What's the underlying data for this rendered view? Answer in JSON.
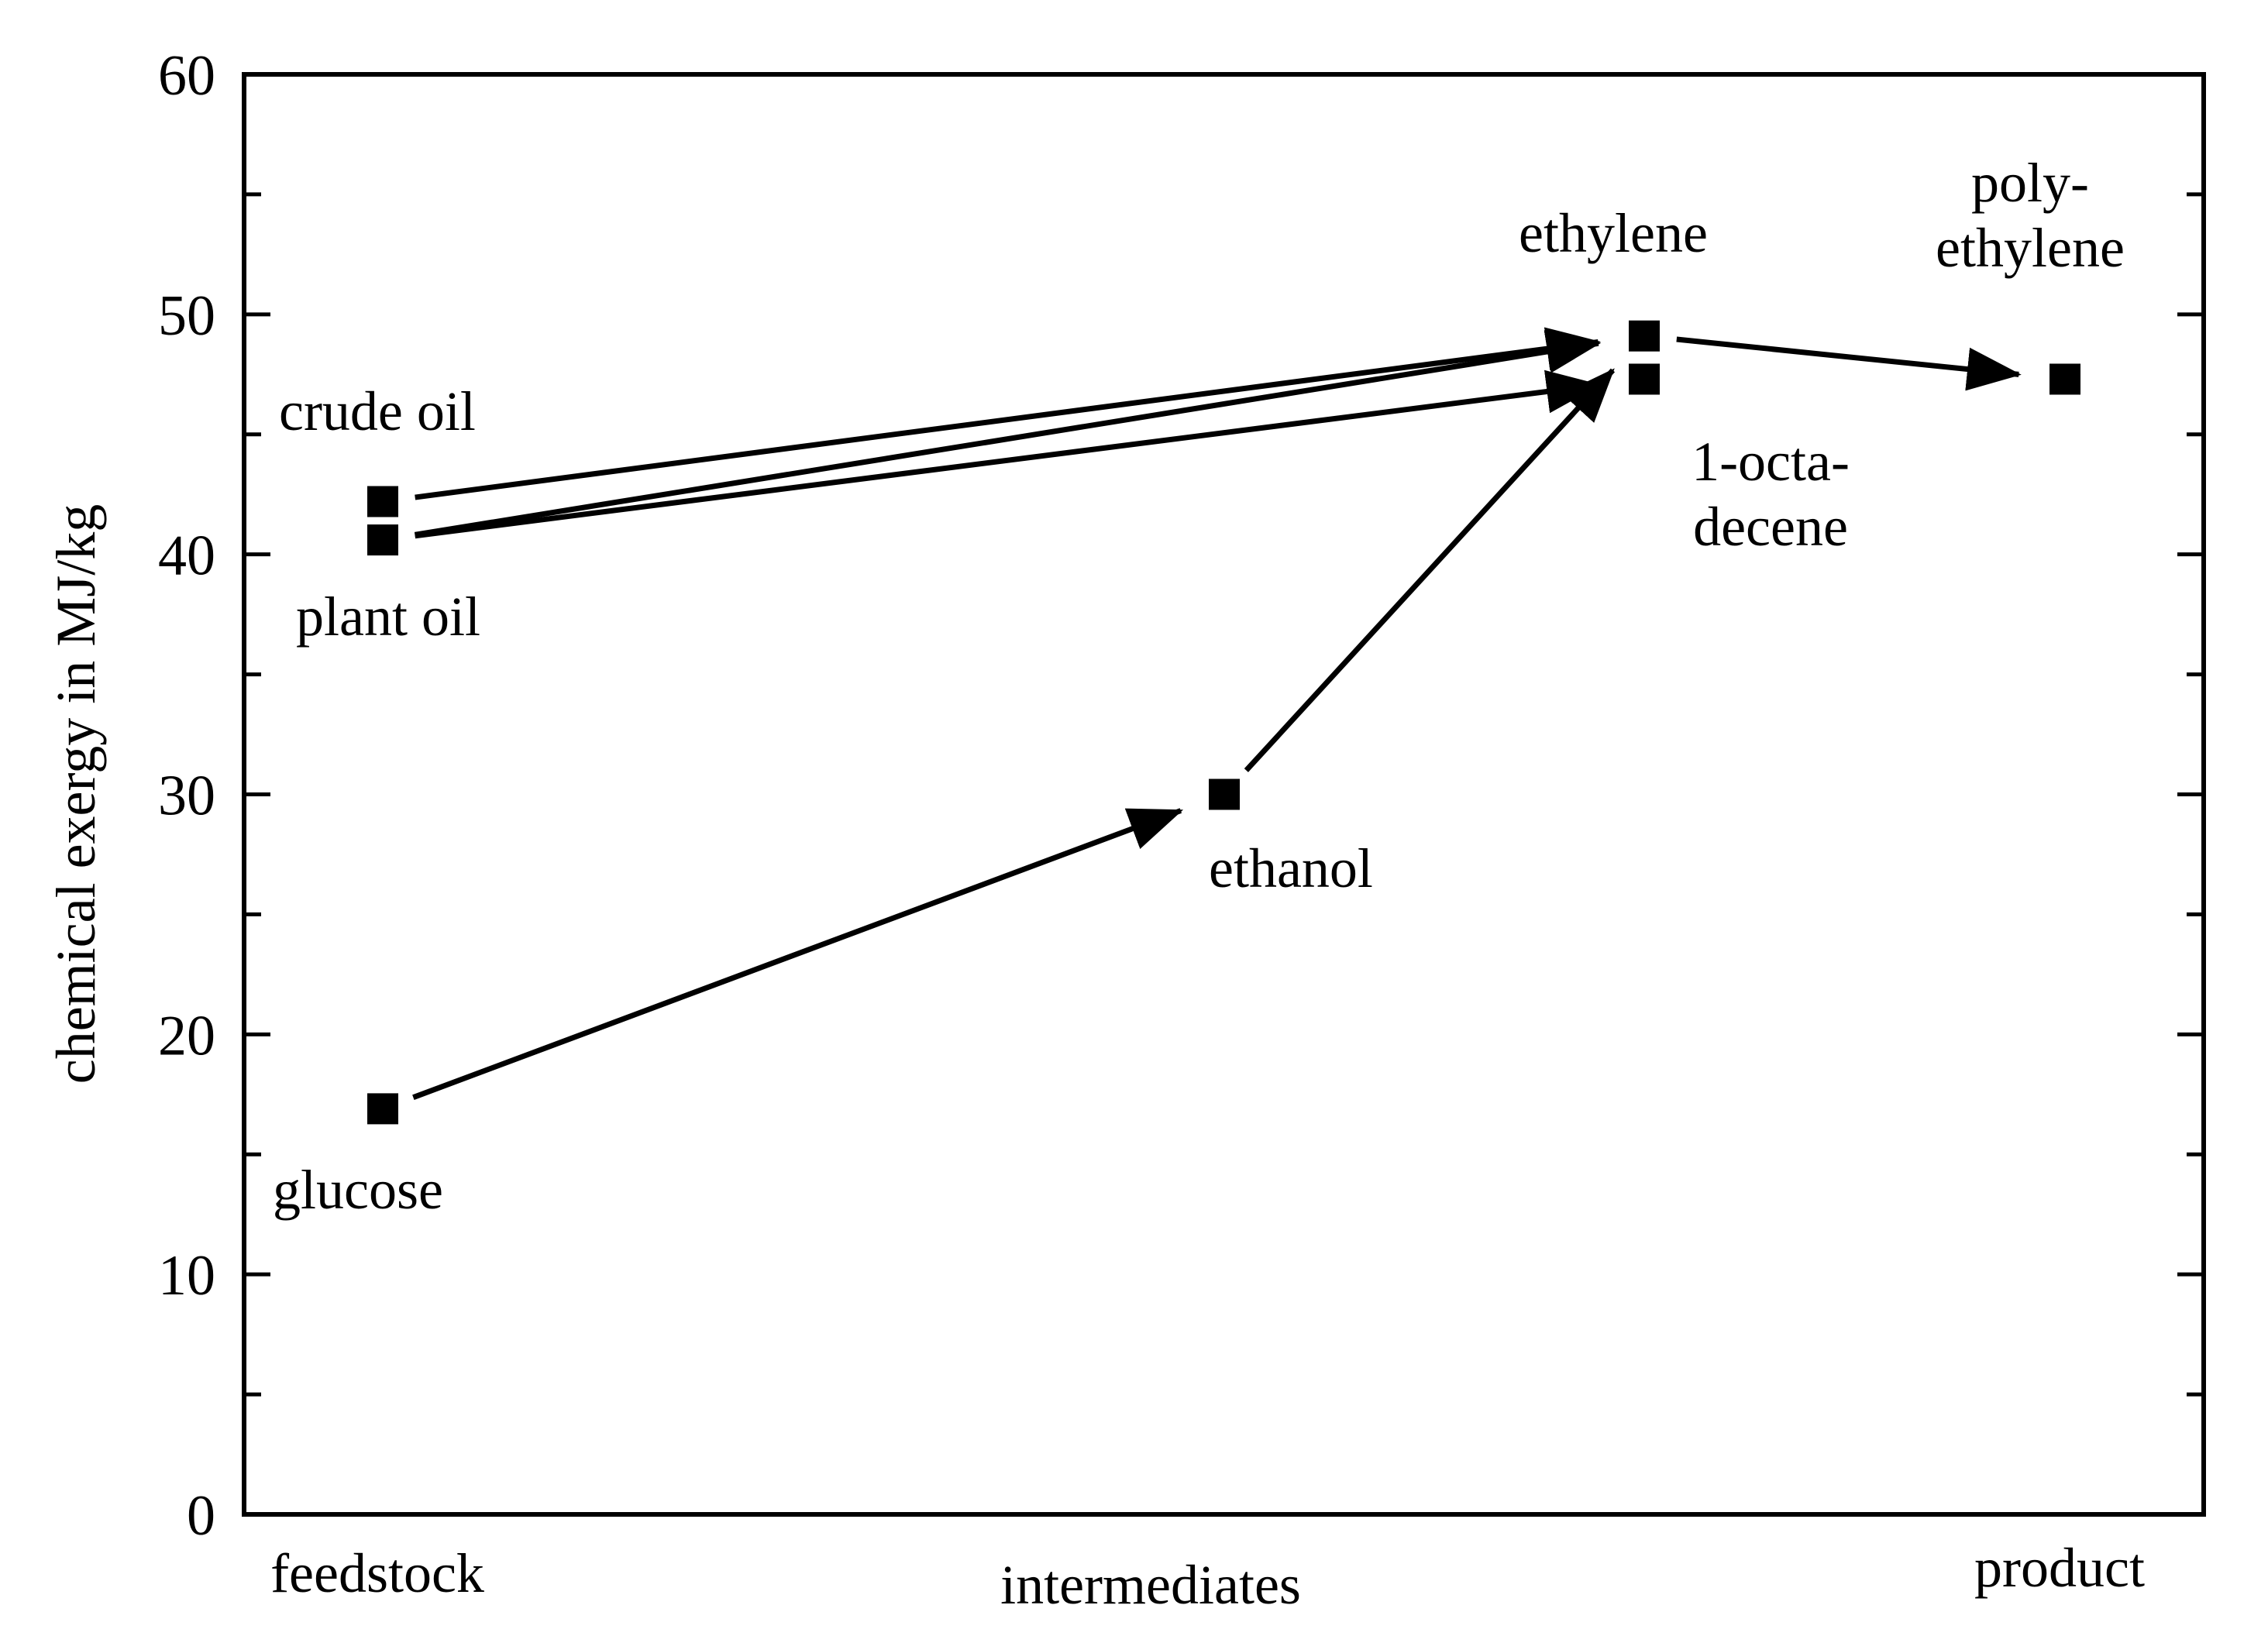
{
  "chart_data": {
    "type": "scatter",
    "title": "",
    "xlabel": "",
    "ylabel": "chemical exergy in MJ/kg",
    "ylim": [
      0,
      60
    ],
    "yticks": [
      0,
      10,
      20,
      30,
      40,
      50,
      60
    ],
    "grid": false,
    "legend": "none",
    "stages": [
      "feedstock",
      "intermediates",
      "product"
    ],
    "colors": {
      "marks": "#000000",
      "background": "#ffffff"
    },
    "points": [
      {
        "id": "crude-oil",
        "stage": "feedstock",
        "value": 42.2
      },
      {
        "id": "plant-oil",
        "stage": "feedstock",
        "value": 40.6
      },
      {
        "id": "glucose",
        "stage": "feedstock",
        "value": 16.9
      },
      {
        "id": "ethanol",
        "stage": "intermediates",
        "value": 30.0
      },
      {
        "id": "ethylene",
        "stage": "intermediates",
        "value": 49.1
      },
      {
        "id": "octadecene",
        "stage": "intermediates",
        "value": 47.3
      },
      {
        "id": "polyethylene",
        "stage": "product",
        "value": 47.3
      }
    ],
    "point_labels": {
      "crude-oil": [
        "crude oil"
      ],
      "plant-oil": [
        "plant oil"
      ],
      "glucose": [
        "glucose"
      ],
      "ethanol": [
        "ethanol"
      ],
      "ethylene": [
        "ethylene"
      ],
      "octadecene": [
        "1-octa-",
        "decene"
      ],
      "polyethylene": [
        "poly-",
        "ethylene"
      ]
    },
    "arrows": [
      {
        "from": "crude-oil",
        "to": "ethylene"
      },
      {
        "from": "plant-oil",
        "to": "ethylene"
      },
      {
        "from": "plant-oil",
        "to": "octadecene"
      },
      {
        "from": "glucose",
        "to": "ethanol"
      },
      {
        "from": "ethanol",
        "to": "ethylene"
      },
      {
        "from": "ethylene",
        "to": "polyethylene"
      }
    ]
  }
}
